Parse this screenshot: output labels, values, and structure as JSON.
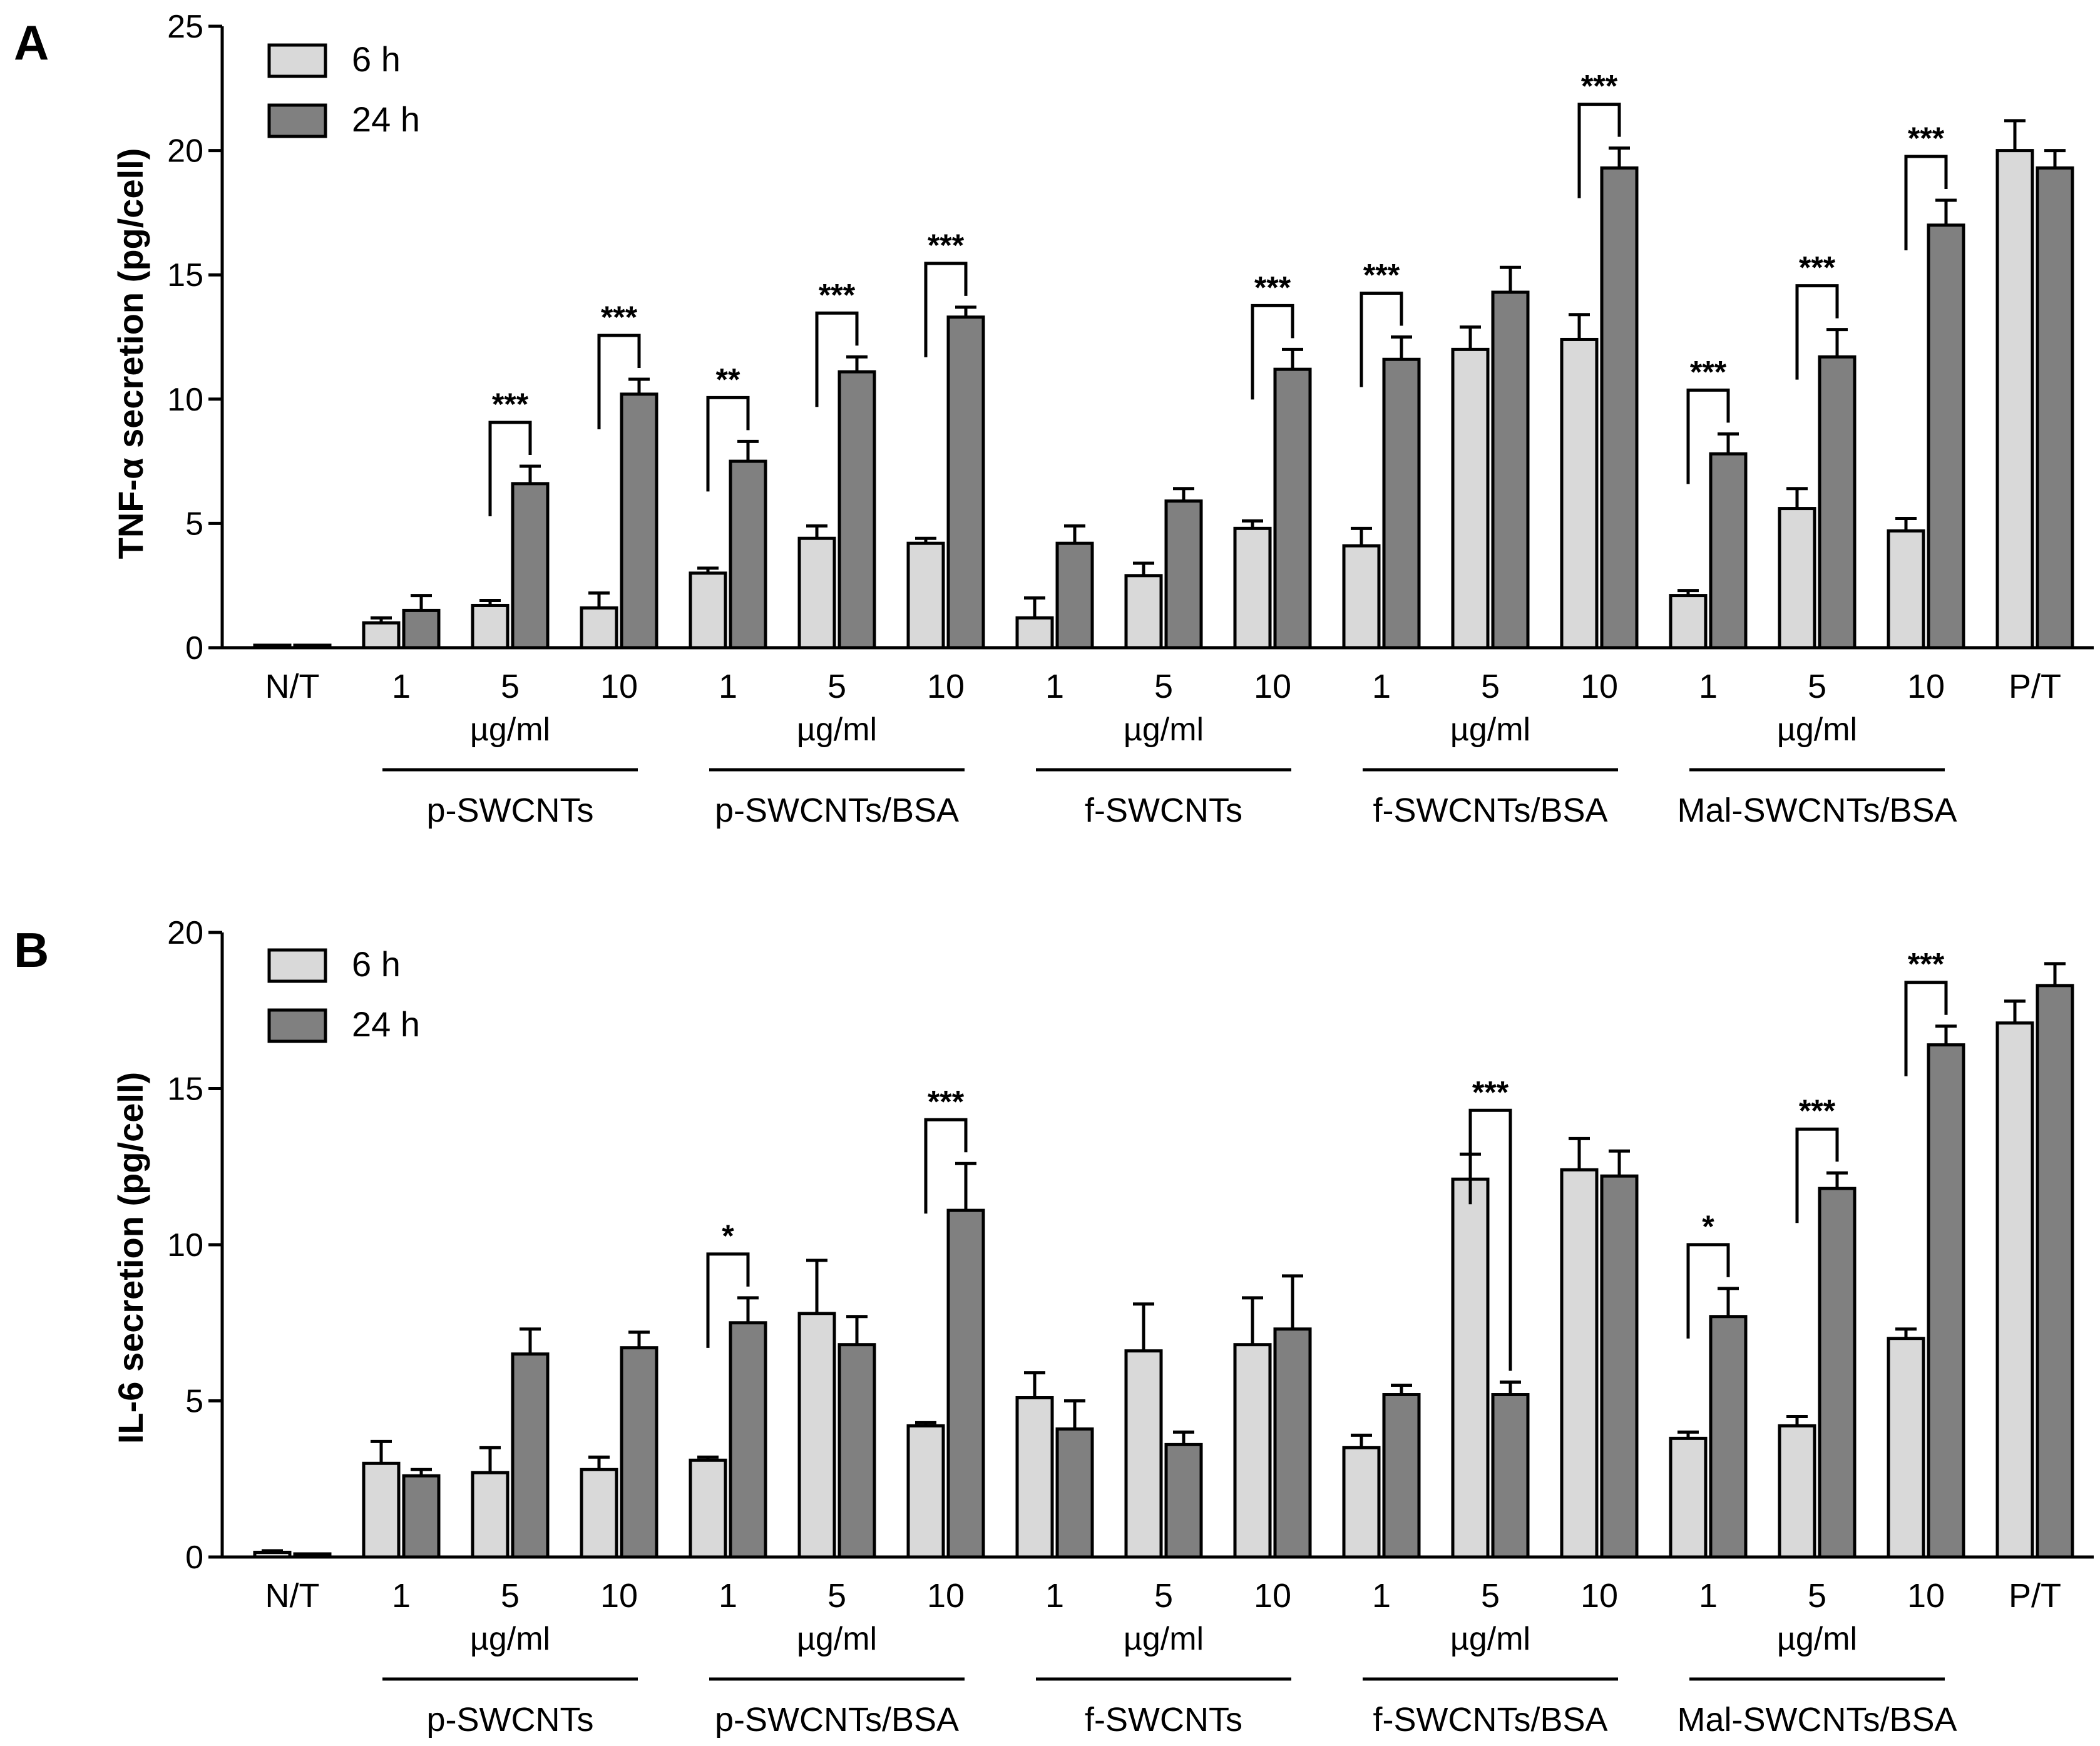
{
  "chart_data": [
    {
      "type": "bar",
      "panel_label": "A",
      "ylabel": "TNF-α secretion (pg/cell)",
      "ylim": [
        0,
        25
      ],
      "yticks": [
        "0",
        "5",
        "10",
        "15",
        "20",
        "25"
      ],
      "unit_label": "µg/ml",
      "categories": [
        "N/T",
        "1",
        "5",
        "10",
        "1",
        "5",
        "10",
        "1",
        "5",
        "10",
        "1",
        "5",
        "10",
        "1",
        "5",
        "10",
        "P/T"
      ],
      "groups": [
        {
          "label": "p-SWCNTs",
          "first": 1,
          "last": 3
        },
        {
          "label": "p-SWCNTs/BSA",
          "first": 4,
          "last": 6
        },
        {
          "label": "f-SWCNTs",
          "first": 7,
          "last": 9
        },
        {
          "label": "f-SWCNTs/BSA",
          "first": 10,
          "last": 12
        },
        {
          "label": "Mal-SWCNTs/BSA",
          "first": 13,
          "last": 15
        }
      ],
      "legend": {
        "position": "top-left",
        "entries": [
          "6 h",
          "24 h"
        ]
      },
      "series": [
        {
          "name": "6 h",
          "color": "#d9d9d9",
          "values": [
            0.1,
            1.0,
            1.7,
            1.6,
            3.0,
            4.4,
            4.2,
            1.2,
            2.9,
            4.8,
            4.1,
            12.0,
            12.4,
            2.1,
            5.6,
            4.7,
            20.0
          ],
          "errors": [
            0.0,
            0.2,
            0.2,
            0.6,
            0.2,
            0.5,
            0.2,
            0.8,
            0.5,
            0.3,
            0.7,
            0.9,
            1.0,
            0.2,
            0.8,
            0.5,
            1.2
          ]
        },
        {
          "name": "24 h",
          "color": "#808080",
          "values": [
            0.1,
            1.5,
            6.6,
            10.2,
            7.5,
            11.1,
            13.3,
            4.2,
            5.9,
            11.2,
            11.6,
            14.3,
            19.3,
            7.8,
            11.7,
            17.0,
            19.3
          ],
          "errors": [
            0.0,
            0.6,
            0.7,
            0.6,
            0.8,
            0.6,
            0.4,
            0.7,
            0.5,
            0.8,
            0.9,
            1.0,
            0.8,
            0.8,
            1.1,
            1.0,
            0.7
          ]
        }
      ],
      "significance": [
        {
          "index": 2,
          "label": "***"
        },
        {
          "index": 3,
          "label": "***"
        },
        {
          "index": 4,
          "label": "**"
        },
        {
          "index": 5,
          "label": "***"
        },
        {
          "index": 6,
          "label": "***"
        },
        {
          "index": 9,
          "label": "***"
        },
        {
          "index": 10,
          "label": "***"
        },
        {
          "index": 12,
          "label": "***"
        },
        {
          "index": 13,
          "label": "***"
        },
        {
          "index": 14,
          "label": "***"
        },
        {
          "index": 15,
          "label": "***"
        }
      ]
    },
    {
      "type": "bar",
      "panel_label": "B",
      "ylabel": "IL-6 secretion (pg/cell)",
      "ylim": [
        0,
        20
      ],
      "yticks": [
        "0",
        "5",
        "10",
        "15",
        "20"
      ],
      "unit_label": "µg/ml",
      "categories": [
        "N/T",
        "1",
        "5",
        "10",
        "1",
        "5",
        "10",
        "1",
        "5",
        "10",
        "1",
        "5",
        "10",
        "1",
        "5",
        "10",
        "P/T"
      ],
      "groups": [
        {
          "label": "p-SWCNTs",
          "first": 1,
          "last": 3
        },
        {
          "label": "p-SWCNTs/BSA",
          "first": 4,
          "last": 6
        },
        {
          "label": "f-SWCNTs",
          "first": 7,
          "last": 9
        },
        {
          "label": "f-SWCNTs/BSA",
          "first": 10,
          "last": 12
        },
        {
          "label": "Mal-SWCNTs/BSA",
          "first": 13,
          "last": 15
        }
      ],
      "legend": {
        "position": "top-left",
        "entries": [
          "6 h",
          "24 h"
        ]
      },
      "series": [
        {
          "name": "6 h",
          "color": "#d9d9d9",
          "values": [
            0.15,
            3.0,
            2.7,
            2.8,
            3.1,
            7.8,
            4.2,
            5.1,
            6.6,
            6.8,
            3.5,
            12.1,
            12.4,
            3.8,
            4.2,
            7.0,
            17.1
          ],
          "errors": [
            0.05,
            0.7,
            0.8,
            0.4,
            0.1,
            1.7,
            0.1,
            0.8,
            1.5,
            1.5,
            0.4,
            0.8,
            1.0,
            0.2,
            0.3,
            0.3,
            0.7
          ]
        },
        {
          "name": "24 h",
          "color": "#808080",
          "values": [
            0.1,
            2.6,
            6.5,
            6.7,
            7.5,
            6.8,
            11.1,
            4.1,
            3.6,
            7.3,
            5.2,
            5.2,
            12.2,
            7.7,
            11.8,
            16.4,
            18.3
          ],
          "errors": [
            0.0,
            0.2,
            0.8,
            0.5,
            0.8,
            0.9,
            1.5,
            0.9,
            0.4,
            1.7,
            0.3,
            0.4,
            0.8,
            0.9,
            0.5,
            0.6,
            0.7
          ]
        }
      ],
      "significance": [
        {
          "index": 4,
          "label": "*"
        },
        {
          "index": 6,
          "label": "***"
        },
        {
          "index": 11,
          "label": "***"
        },
        {
          "index": 13,
          "label": "*"
        },
        {
          "index": 14,
          "label": "***"
        },
        {
          "index": 15,
          "label": "***"
        }
      ]
    }
  ]
}
